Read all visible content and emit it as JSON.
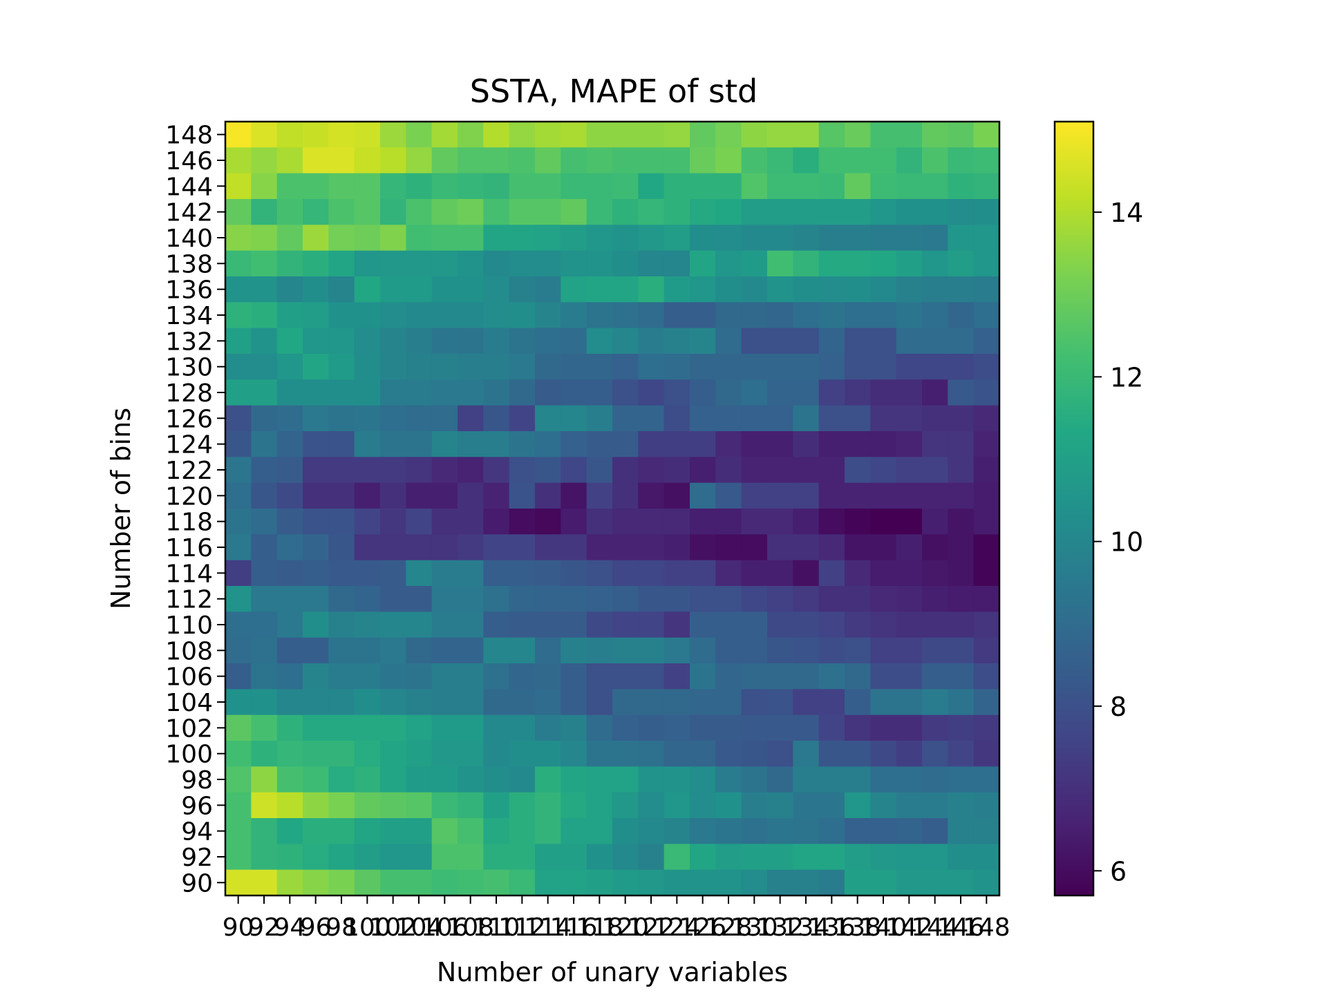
{
  "chart_data": {
    "type": "heatmap",
    "title": "SSTA, MAPE of std",
    "xlabel": "Number of unary variables",
    "ylabel": "Number of bins",
    "colormap": "viridis",
    "x": [
      90,
      92,
      94,
      96,
      98,
      100,
      102,
      104,
      106,
      108,
      110,
      112,
      114,
      116,
      118,
      120,
      122,
      124,
      126,
      128,
      130,
      132,
      134,
      136,
      138,
      140,
      142,
      144,
      146,
      148
    ],
    "y": [
      148,
      146,
      144,
      142,
      140,
      138,
      136,
      134,
      132,
      130,
      128,
      126,
      124,
      122,
      120,
      118,
      116,
      114,
      112,
      110,
      108,
      106,
      104,
      102,
      100,
      98,
      96,
      94,
      92,
      90
    ],
    "x_tick_labels": [
      "90",
      "92",
      "94",
      "96",
      "98",
      "100",
      "102",
      "104",
      "106",
      "108",
      "110",
      "112",
      "114",
      "116",
      "118",
      "120",
      "122",
      "124",
      "126",
      "128",
      "130",
      "132",
      "134",
      "136",
      "138",
      "140",
      "142",
      "144",
      "146",
      "148"
    ],
    "y_tick_labels": [
      "148",
      "146",
      "144",
      "142",
      "140",
      "138",
      "136",
      "134",
      "132",
      "130",
      "128",
      "126",
      "124",
      "122",
      "120",
      "118",
      "116",
      "114",
      "112",
      "110",
      "108",
      "106",
      "104",
      "102",
      "100",
      "98",
      "96",
      "94",
      "92",
      "90"
    ],
    "colorbar": {
      "range": [
        5.7,
        15.1
      ],
      "ticks": [
        6,
        8,
        10,
        12,
        14
      ],
      "tick_labels": [
        "6",
        "8",
        "10",
        "12",
        "14"
      ]
    },
    "values": [
      [
        15.0,
        14.6,
        14.2,
        14.3,
        14.5,
        14.4,
        13.7,
        13.2,
        13.8,
        13.3,
        14.0,
        13.6,
        13.8,
        13.9,
        13.5,
        13.5,
        13.5,
        13.6,
        12.8,
        13.1,
        13.5,
        13.6,
        13.6,
        12.6,
        12.9,
        12.3,
        12.3,
        12.8,
        12.7,
        13.2
      ],
      [
        13.9,
        13.6,
        13.9,
        14.6,
        14.6,
        14.3,
        14.1,
        13.6,
        12.8,
        12.5,
        12.5,
        12.4,
        12.8,
        12.3,
        12.4,
        12.3,
        12.3,
        12.3,
        12.9,
        13.2,
        12.3,
        12.0,
        11.6,
        12.2,
        12.2,
        12.2,
        11.8,
        12.4,
        12.0,
        12.1
      ],
      [
        14.2,
        13.4,
        12.4,
        12.4,
        12.6,
        12.6,
        11.9,
        11.7,
        12.0,
        11.9,
        11.8,
        12.3,
        12.3,
        12.0,
        12.0,
        12.1,
        11.3,
        11.7,
        11.7,
        11.7,
        12.5,
        12.1,
        12.1,
        12.0,
        12.8,
        12.1,
        12.0,
        12.0,
        11.7,
        11.8
      ],
      [
        12.8,
        11.8,
        12.3,
        11.9,
        12.4,
        12.6,
        11.8,
        12.4,
        12.8,
        13.0,
        12.3,
        12.6,
        12.6,
        12.8,
        12.0,
        11.7,
        11.9,
        11.7,
        11.4,
        11.3,
        10.9,
        10.9,
        10.9,
        10.9,
        10.9,
        10.6,
        10.4,
        10.4,
        10.2,
        10.3
      ],
      [
        13.4,
        13.3,
        12.8,
        13.7,
        13.1,
        13.0,
        13.3,
        12.2,
        12.3,
        12.3,
        11.2,
        11.2,
        11.1,
        10.9,
        10.6,
        10.5,
        10.7,
        10.9,
        10.3,
        10.2,
        10.1,
        10.1,
        9.9,
        9.7,
        9.7,
        9.6,
        9.6,
        9.5,
        10.6,
        10.6
      ],
      [
        12.0,
        12.2,
        11.8,
        11.6,
        11.2,
        10.6,
        10.7,
        10.7,
        10.7,
        10.5,
        10.1,
        10.2,
        10.2,
        10.5,
        10.5,
        10.3,
        10.0,
        10.0,
        11.2,
        10.6,
        10.8,
        12.2,
        11.8,
        11.4,
        11.4,
        11.3,
        11.0,
        10.6,
        10.9,
        10.6
      ],
      [
        10.5,
        10.5,
        10.0,
        10.3,
        9.9,
        11.3,
        10.8,
        10.8,
        10.4,
        10.4,
        10.2,
        9.8,
        9.6,
        11.1,
        11.2,
        11.2,
        11.6,
        10.8,
        10.6,
        10.3,
        10.1,
        10.5,
        10.3,
        10.2,
        10.3,
        10.1,
        9.8,
        9.7,
        9.7,
        9.6
      ],
      [
        11.7,
        11.6,
        11.0,
        10.9,
        10.4,
        10.4,
        10.2,
        10.1,
        10.1,
        10.1,
        10.2,
        10.3,
        9.9,
        9.6,
        9.3,
        9.2,
        9.0,
        8.5,
        8.5,
        8.9,
        8.9,
        8.8,
        9.1,
        9.3,
        9.1,
        9.1,
        9.4,
        9.1,
        8.8,
        9.1
      ],
      [
        11.0,
        10.5,
        11.3,
        10.6,
        10.6,
        10.2,
        9.9,
        9.7,
        9.4,
        9.3,
        9.6,
        9.3,
        9.1,
        9.0,
        10.2,
        10.0,
        9.6,
        9.8,
        9.9,
        9.0,
        8.0,
        8.0,
        8.0,
        8.7,
        8.0,
        8.0,
        9.0,
        9.0,
        9.0,
        8.6
      ],
      [
        10.2,
        10.2,
        10.6,
        11.2,
        10.8,
        10.3,
        9.9,
        9.8,
        9.8,
        9.7,
        9.7,
        9.5,
        8.9,
        8.8,
        8.8,
        8.6,
        9.1,
        9.0,
        8.8,
        8.8,
        8.8,
        8.8,
        8.8,
        8.6,
        8.0,
        8.0,
        7.7,
        7.7,
        7.7,
        7.9
      ],
      [
        11.0,
        11.0,
        10.3,
        10.3,
        10.3,
        10.3,
        9.6,
        9.6,
        9.5,
        9.5,
        9.3,
        8.9,
        8.4,
        8.5,
        8.5,
        8.0,
        7.7,
        8.0,
        8.5,
        8.9,
        9.1,
        8.7,
        8.7,
        7.5,
        7.2,
        6.9,
        6.9,
        6.5,
        8.3,
        8.1
      ],
      [
        8.0,
        8.9,
        9.0,
        9.5,
        9.3,
        9.4,
        9.1,
        9.0,
        9.0,
        7.5,
        8.2,
        7.6,
        10.0,
        10.0,
        9.7,
        8.7,
        8.7,
        7.9,
        8.6,
        8.6,
        8.6,
        8.6,
        9.3,
        8.0,
        8.0,
        7.1,
        7.1,
        7.0,
        7.0,
        6.8
      ],
      [
        8.2,
        9.3,
        8.7,
        8.1,
        8.1,
        9.6,
        9.3,
        9.3,
        9.9,
        9.7,
        9.7,
        9.3,
        9.1,
        8.6,
        8.4,
        8.4,
        7.4,
        7.4,
        7.4,
        6.8,
        6.5,
        6.5,
        6.9,
        6.5,
        6.5,
        6.5,
        6.6,
        7.1,
        7.1,
        6.6
      ],
      [
        9.4,
        8.5,
        8.4,
        7.3,
        7.3,
        7.3,
        7.3,
        7.1,
        6.8,
        6.6,
        7.2,
        8.0,
        8.2,
        7.7,
        8.2,
        7.0,
        6.8,
        6.9,
        6.5,
        6.9,
        6.6,
        6.6,
        6.6,
        6.6,
        7.9,
        7.7,
        7.5,
        7.5,
        7.1,
        6.5
      ],
      [
        9.1,
        8.2,
        7.8,
        7.0,
        7.0,
        6.5,
        7.0,
        6.5,
        6.5,
        7.0,
        6.6,
        8.1,
        7.0,
        6.2,
        7.5,
        7.0,
        6.3,
        6.1,
        9.0,
        8.3,
        7.5,
        7.5,
        7.5,
        6.6,
        6.6,
        6.6,
        6.6,
        6.6,
        6.6,
        6.4
      ],
      [
        9.3,
        9.0,
        8.4,
        8.1,
        8.1,
        7.6,
        7.2,
        7.6,
        7.0,
        7.0,
        6.4,
        6.0,
        5.9,
        6.4,
        7.0,
        6.8,
        6.8,
        6.8,
        6.5,
        6.5,
        6.8,
        6.8,
        6.5,
        6.0,
        5.8,
        5.7,
        5.7,
        6.5,
        6.2,
        6.4
      ],
      [
        9.5,
        8.5,
        9.0,
        8.7,
        8.2,
        7.1,
        7.1,
        7.1,
        7.1,
        7.3,
        7.6,
        7.6,
        7.2,
        7.2,
        6.6,
        6.6,
        6.6,
        6.5,
        6.1,
        6.0,
        6.0,
        7.0,
        7.0,
        6.8,
        6.2,
        6.2,
        6.5,
        6.1,
        6.2,
        5.8
      ],
      [
        7.4,
        8.5,
        8.4,
        8.5,
        8.3,
        8.3,
        8.4,
        10.0,
        9.6,
        9.6,
        8.5,
        8.5,
        8.4,
        8.2,
        8.0,
        7.7,
        7.7,
        7.5,
        7.5,
        6.8,
        6.5,
        6.5,
        6.1,
        7.5,
        6.8,
        6.4,
        6.4,
        6.3,
        6.2,
        5.8
      ],
      [
        10.5,
        9.5,
        9.5,
        9.5,
        8.9,
        8.7,
        8.4,
        8.4,
        9.5,
        9.5,
        9.2,
        8.8,
        8.7,
        8.7,
        8.6,
        8.5,
        8.2,
        8.2,
        8.0,
        8.0,
        7.7,
        7.5,
        7.3,
        7.0,
        7.0,
        6.8,
        6.7,
        6.5,
        6.4,
        6.4
      ],
      [
        9.1,
        9.1,
        9.5,
        10.3,
        9.8,
        9.9,
        10.0,
        10.0,
        9.6,
        9.6,
        8.5,
        8.4,
        8.4,
        8.4,
        7.8,
        7.6,
        7.6,
        7.1,
        8.5,
        8.5,
        8.5,
        7.8,
        7.8,
        7.6,
        7.3,
        7.1,
        7.0,
        7.0,
        7.0,
        7.1
      ],
      [
        9.0,
        9.2,
        8.5,
        8.5,
        9.3,
        9.3,
        9.5,
        8.9,
        8.7,
        8.7,
        10.0,
        10.0,
        9.0,
        9.8,
        9.7,
        9.8,
        9.8,
        9.5,
        9.0,
        8.5,
        8.5,
        8.2,
        8.1,
        7.9,
        8.0,
        7.5,
        7.5,
        7.8,
        7.8,
        7.3
      ],
      [
        8.5,
        9.3,
        9.1,
        9.9,
        9.6,
        9.6,
        9.4,
        9.3,
        9.7,
        9.7,
        9.2,
        8.8,
        8.9,
        8.5,
        8.0,
        8.0,
        8.0,
        7.5,
        9.3,
        8.8,
        8.9,
        8.9,
        8.9,
        9.2,
        8.9,
        7.9,
        7.9,
        8.5,
        8.5,
        7.9
      ],
      [
        10.4,
        10.4,
        10.0,
        10.0,
        10.0,
        10.3,
        10.0,
        9.8,
        9.7,
        9.7,
        8.9,
        8.9,
        9.0,
        8.5,
        8.0,
        8.9,
        8.9,
        8.9,
        8.8,
        8.8,
        8.0,
        8.1,
        7.5,
        7.5,
        8.5,
        9.3,
        9.3,
        9.6,
        9.3,
        8.7
      ],
      [
        12.7,
        12.3,
        11.7,
        11.4,
        11.4,
        11.4,
        11.4,
        11.1,
        10.8,
        10.8,
        10.1,
        10.1,
        9.6,
        9.8,
        9.0,
        8.6,
        8.5,
        8.6,
        8.4,
        8.4,
        8.3,
        8.3,
        8.3,
        7.6,
        7.1,
        6.9,
        6.9,
        7.3,
        7.4,
        7.3
      ],
      [
        12.2,
        11.7,
        11.9,
        11.8,
        11.8,
        11.5,
        11.2,
        11.0,
        10.7,
        10.7,
        10.1,
        10.3,
        10.3,
        10.0,
        9.3,
        9.3,
        9.2,
        8.8,
        8.8,
        8.3,
        8.2,
        8.0,
        9.5,
        8.2,
        8.2,
        7.8,
        7.4,
        8.0,
        7.6,
        7.2
      ],
      [
        12.5,
        13.5,
        12.3,
        12.1,
        11.5,
        11.7,
        11.2,
        10.8,
        10.8,
        10.5,
        10.3,
        10.1,
        11.6,
        11.2,
        11.1,
        11.1,
        10.5,
        10.5,
        10.2,
        9.6,
        9.3,
        8.9,
        9.7,
        9.7,
        9.7,
        9.1,
        9.1,
        9.0,
        9.1,
        9.1
      ],
      [
        12.3,
        14.4,
        14.1,
        13.5,
        13.2,
        12.8,
        12.7,
        12.6,
        12.0,
        11.8,
        11.0,
        11.6,
        11.8,
        11.4,
        11.1,
        10.7,
        10.2,
        10.6,
        10.2,
        10.4,
        9.7,
        9.8,
        9.4,
        9.4,
        10.6,
        9.9,
        9.6,
        9.6,
        9.8,
        9.7
      ],
      [
        12.3,
        11.8,
        11.3,
        11.6,
        11.6,
        11.2,
        11.0,
        11.0,
        12.6,
        12.3,
        11.4,
        11.6,
        11.8,
        11.1,
        11.1,
        10.3,
        10.1,
        9.9,
        9.5,
        9.4,
        9.2,
        9.4,
        9.3,
        9.1,
        8.6,
        8.6,
        8.7,
        8.5,
        9.8,
        9.8
      ],
      [
        12.3,
        11.8,
        11.7,
        11.5,
        11.2,
        10.9,
        10.6,
        10.6,
        12.4,
        12.4,
        11.6,
        11.6,
        11.0,
        11.0,
        10.4,
        10.1,
        9.8,
        12.0,
        11.2,
        10.9,
        11.0,
        11.0,
        11.2,
        11.2,
        10.9,
        10.7,
        10.6,
        10.6,
        10.3,
        10.3
      ],
      [
        14.5,
        14.5,
        13.7,
        13.4,
        13.2,
        12.7,
        12.3,
        12.3,
        12.1,
        12.2,
        12.3,
        12.0,
        11.1,
        11.1,
        11.0,
        10.8,
        10.7,
        10.5,
        10.5,
        10.5,
        10.2,
        9.8,
        9.8,
        9.6,
        11.0,
        11.0,
        10.7,
        10.7,
        10.7,
        10.5
      ]
    ]
  }
}
